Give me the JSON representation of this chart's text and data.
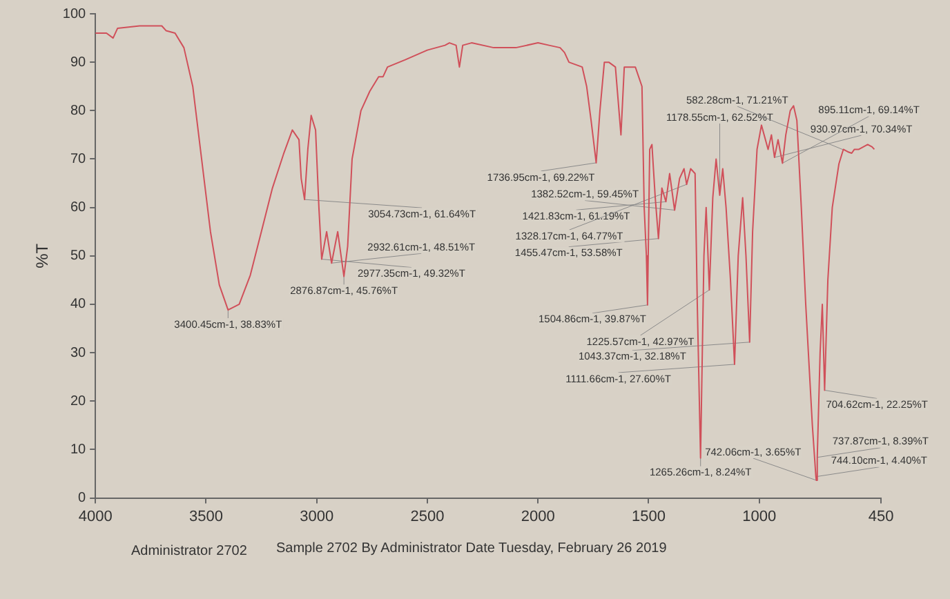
{
  "chart_data": {
    "type": "line",
    "ylabel": "%T",
    "xlim": [
      4000,
      450
    ],
    "xticks": [
      4000,
      3500,
      3000,
      2500,
      2000,
      1500,
      1000,
      450
    ],
    "ylim": [
      0,
      100
    ],
    "yticks": [
      0,
      10,
      20,
      30,
      40,
      50,
      60,
      70,
      80,
      90,
      100
    ],
    "grid": false,
    "legend": "bottom",
    "marker": "none",
    "series": [
      {
        "name": "Administrator 2702",
        "color": "#d0505a",
        "x": [
          4000,
          3950,
          3920,
          3900,
          3800,
          3700,
          3680,
          3640,
          3600,
          3560,
          3520,
          3480,
          3440,
          3400.45,
          3350,
          3300,
          3250,
          3200,
          3150,
          3110,
          3080,
          3070,
          3054.73,
          3040,
          3025,
          3005,
          2990,
          2977.35,
          2955,
          2932.61,
          2905,
          2876.87,
          2860,
          2840,
          2800,
          2760,
          2720,
          2700,
          2680,
          2600,
          2500,
          2420,
          2400,
          2370,
          2355,
          2340,
          2300,
          2200,
          2100,
          2000,
          1950,
          1900,
          1880,
          1860,
          1800,
          1780,
          1760,
          1736.95,
          1720,
          1700,
          1680,
          1650,
          1625,
          1610,
          1590,
          1560,
          1530,
          1520,
          1510,
          1504.86,
          1495,
          1485,
          1470,
          1455.47,
          1440,
          1421.83,
          1405,
          1382.52,
          1360,
          1340,
          1328.17,
          1310,
          1290,
          1280,
          1265.26,
          1250,
          1240,
          1225.57,
          1210,
          1195,
          1178.55,
          1165,
          1150,
          1130,
          1111.66,
          1095,
          1075,
          1060,
          1043.37,
          1030,
          1010,
          990,
          960,
          945,
          930.97,
          915,
          895.11,
          880,
          860,
          845,
          830,
          810,
          790,
          760,
          744.1,
          742.06,
          737.87,
          725,
          715,
          704.62,
          690,
          670,
          640,
          620,
          600,
          582.28,
          570,
          550,
          530,
          510,
          490,
          480
        ],
        "values": [
          96,
          96,
          95,
          97,
          97.5,
          97.5,
          96.5,
          96,
          93,
          85,
          70,
          55,
          44,
          38.83,
          40,
          46,
          55,
          64,
          71,
          76,
          74,
          66,
          61.64,
          72,
          79,
          76,
          60,
          49.32,
          55,
          48.51,
          55,
          45.76,
          52,
          70,
          80,
          84,
          87,
          87,
          89,
          90.5,
          92.5,
          93.5,
          94,
          93.5,
          89,
          93.5,
          94,
          93,
          93,
          94,
          93.5,
          93,
          92,
          90,
          89,
          85,
          78,
          69.22,
          80,
          90,
          90,
          89,
          75,
          89,
          89,
          89,
          85,
          60,
          50,
          39.87,
          72,
          73,
          62,
          53.58,
          64,
          61.19,
          67,
          59.45,
          66,
          68,
          64.77,
          68,
          67,
          40,
          8.24,
          50,
          60,
          42.97,
          62,
          70,
          62.52,
          68,
          60,
          45,
          27.6,
          50,
          62,
          50,
          32.18,
          55,
          72,
          77,
          72,
          75,
          70.34,
          74,
          69.14,
          75,
          80,
          81,
          78,
          60,
          40,
          15,
          4.4,
          3.65,
          8.39,
          30,
          40,
          22.25,
          45,
          60,
          69,
          72,
          71.5,
          71.21,
          72,
          72,
          72.5,
          73,
          72.5,
          72
        ]
      }
    ],
    "annotations": [
      "Sample 2702 By Administrator Date Tuesday, February 26 2019",
      {
        "text": "3400.45cm-1, 38.83%T",
        "x": 3400.45,
        "y": 38.83
      },
      {
        "text": "3054.73cm-1, 61.64%T",
        "x": 3054.73,
        "y": 61.64
      },
      {
        "text": "2977.35cm-1, 49.32%T",
        "x": 2977.35,
        "y": 49.32
      },
      {
        "text": "2932.61cm-1, 48.51%T",
        "x": 2932.61,
        "y": 48.51
      },
      {
        "text": "2876.87cm-1, 45.76%T",
        "x": 2876.87,
        "y": 45.76
      },
      {
        "text": "1736.95cm-1, 69.22%T",
        "x": 1736.95,
        "y": 69.22
      },
      {
        "text": "1504.86cm-1, 39.87%T",
        "x": 1504.86,
        "y": 39.87
      },
      {
        "text": "1455.47cm-1, 53.58%T",
        "x": 1455.47,
        "y": 53.58
      },
      {
        "text": "1421.83cm-1, 61.19%T",
        "x": 1421.83,
        "y": 61.19
      },
      {
        "text": "1382.52cm-1, 59.45%T",
        "x": 1382.52,
        "y": 59.45
      },
      {
        "text": "1328.17cm-1, 64.77%T",
        "x": 1328.17,
        "y": 64.77
      },
      {
        "text": "1265.26cm-1, 8.24%T",
        "x": 1265.26,
        "y": 8.24
      },
      {
        "text": "1225.57cm-1, 42.97%T",
        "x": 1225.57,
        "y": 42.97
      },
      {
        "text": "1178.55cm-1, 62.52%T",
        "x": 1178.55,
        "y": 62.52
      },
      {
        "text": "1111.66cm-1, 27.60%T",
        "x": 1111.66,
        "y": 27.6
      },
      {
        "text": "1043.37cm-1, 32.18%T",
        "x": 1043.37,
        "y": 32.18
      },
      {
        "text": "930.97cm-1, 70.34%T",
        "x": 930.97,
        "y": 70.34
      },
      {
        "text": "895.11cm-1, 69.14%T",
        "x": 895.11,
        "y": 69.14
      },
      {
        "text": "744.10cm-1, 4.40%T",
        "x": 744.1,
        "y": 4.4
      },
      {
        "text": "742.06cm-1, 3.65%T",
        "x": 742.06,
        "y": 3.65
      },
      {
        "text": "737.87cm-1, 8.39%T",
        "x": 737.87,
        "y": 8.39
      },
      {
        "text": "704.62cm-1, 22.25%T",
        "x": 704.62,
        "y": 22.25
      },
      {
        "text": "582.28cm-1, 71.21%T",
        "x": 582.28,
        "y": 71.21
      }
    ]
  }
}
